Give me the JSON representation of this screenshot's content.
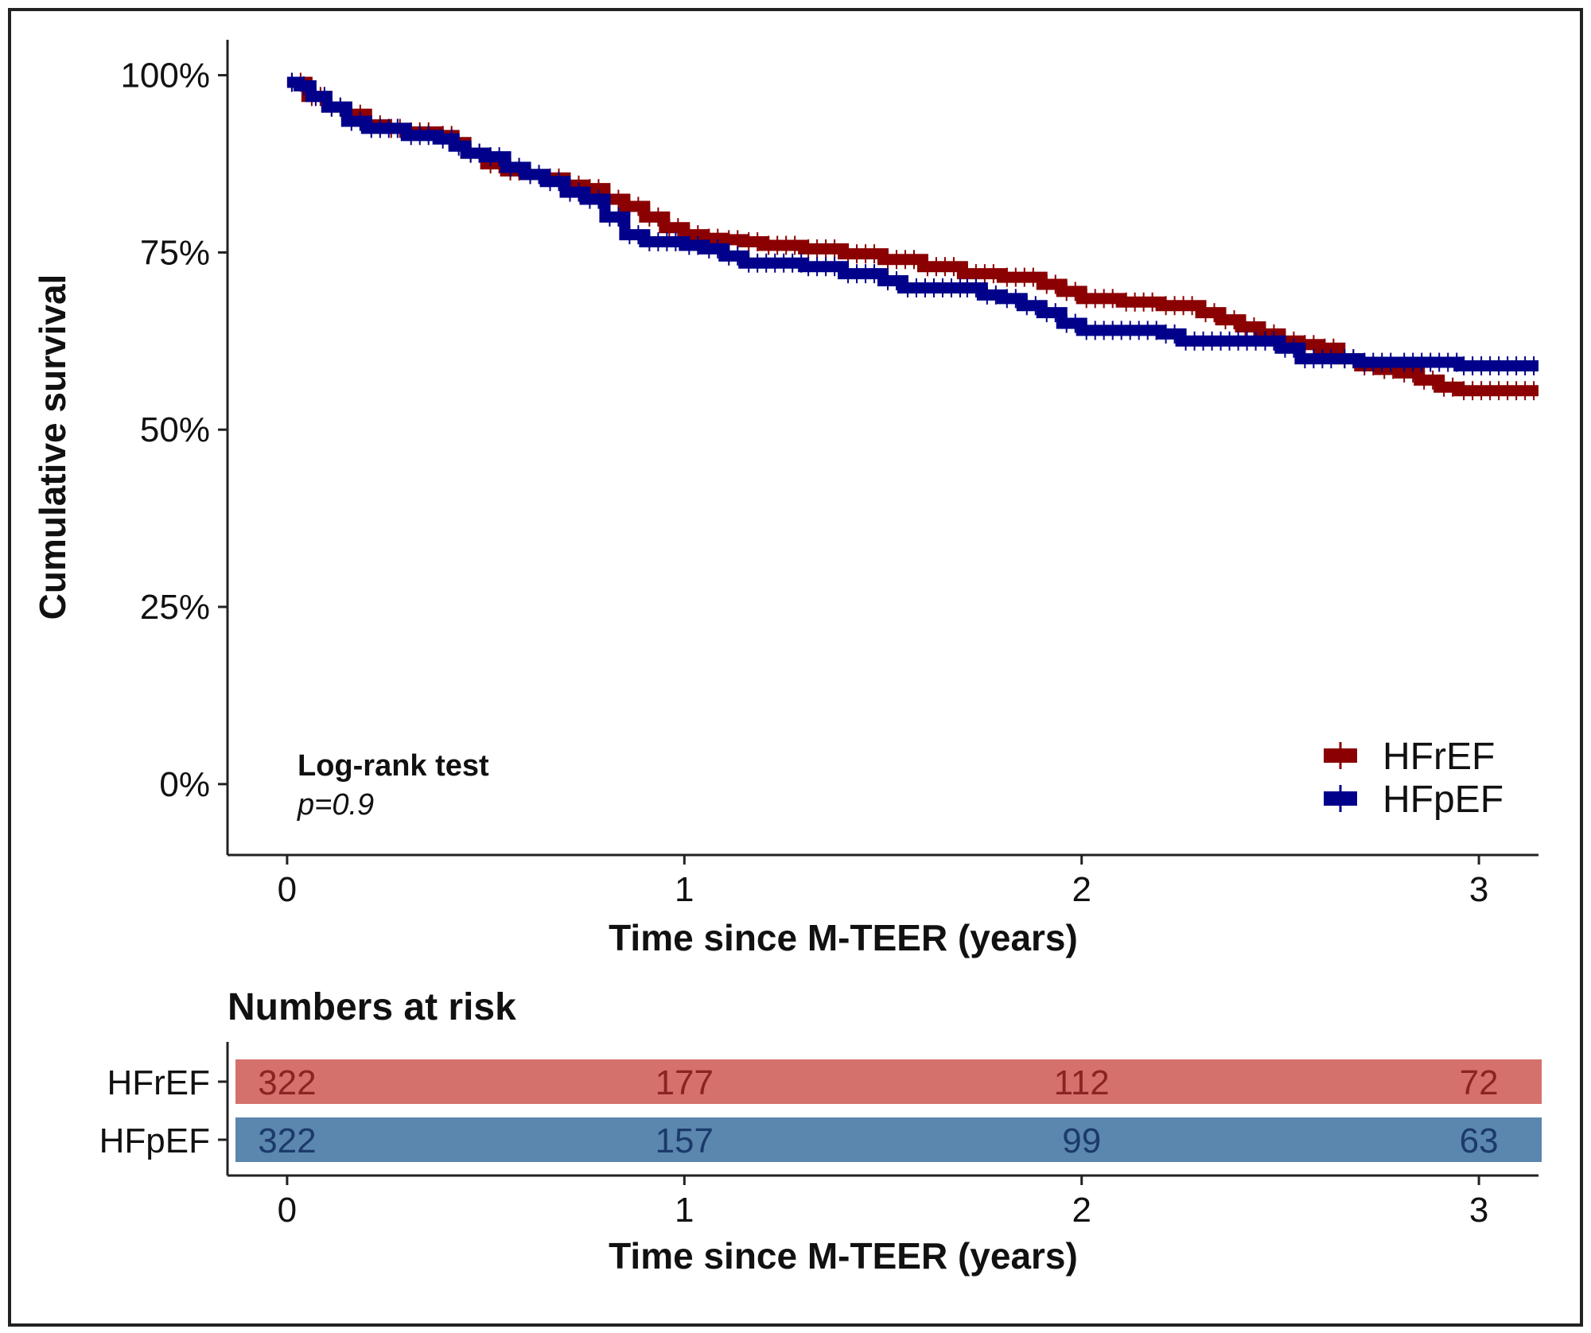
{
  "chart_data": {
    "type": "line",
    "subtype": "kaplan-meier",
    "title": "",
    "xlabel": "Time since M-TEER (years)",
    "ylabel": "Cumulative survival",
    "xlim": [
      -0.15,
      3.15
    ],
    "ylim": [
      -0.1,
      1.05
    ],
    "x_ticks": [
      0,
      1,
      2,
      3
    ],
    "y_ticks": [
      0,
      0.25,
      0.5,
      0.75,
      1.0
    ],
    "y_tick_labels": [
      "0%",
      "25%",
      "50%",
      "75%",
      "100%"
    ],
    "grid": false,
    "legend_position": "bottom-right",
    "annotation": {
      "test": "Log-rank test",
      "p": "p=0.9"
    },
    "series": [
      {
        "name": "HFrEF",
        "color": "#8b0000",
        "points": [
          [
            0,
            0.99
          ],
          [
            0.05,
            0.97
          ],
          [
            0.1,
            0.955
          ],
          [
            0.15,
            0.945
          ],
          [
            0.2,
            0.93
          ],
          [
            0.25,
            0.925
          ],
          [
            0.3,
            0.92
          ],
          [
            0.38,
            0.915
          ],
          [
            0.42,
            0.905
          ],
          [
            0.45,
            0.89
          ],
          [
            0.5,
            0.875
          ],
          [
            0.55,
            0.865
          ],
          [
            0.6,
            0.86
          ],
          [
            0.65,
            0.855
          ],
          [
            0.7,
            0.845
          ],
          [
            0.75,
            0.84
          ],
          [
            0.8,
            0.825
          ],
          [
            0.85,
            0.815
          ],
          [
            0.9,
            0.8
          ],
          [
            0.95,
            0.785
          ],
          [
            1.0,
            0.775
          ],
          [
            1.05,
            0.77
          ],
          [
            1.1,
            0.768
          ],
          [
            1.15,
            0.765
          ],
          [
            1.2,
            0.76
          ],
          [
            1.3,
            0.755
          ],
          [
            1.4,
            0.748
          ],
          [
            1.5,
            0.74
          ],
          [
            1.6,
            0.73
          ],
          [
            1.7,
            0.72
          ],
          [
            1.8,
            0.715
          ],
          [
            1.9,
            0.705
          ],
          [
            1.95,
            0.695
          ],
          [
            2.0,
            0.685
          ],
          [
            2.1,
            0.68
          ],
          [
            2.2,
            0.675
          ],
          [
            2.3,
            0.665
          ],
          [
            2.35,
            0.655
          ],
          [
            2.4,
            0.645
          ],
          [
            2.45,
            0.635
          ],
          [
            2.5,
            0.625
          ],
          [
            2.55,
            0.62
          ],
          [
            2.6,
            0.615
          ],
          [
            2.65,
            0.6
          ],
          [
            2.7,
            0.59
          ],
          [
            2.75,
            0.585
          ],
          [
            2.8,
            0.58
          ],
          [
            2.85,
            0.57
          ],
          [
            2.9,
            0.56
          ],
          [
            2.95,
            0.555
          ],
          [
            3.15,
            0.555
          ]
        ]
      },
      {
        "name": "HFpEF",
        "color": "#00008b",
        "points": [
          [
            0,
            0.99
          ],
          [
            0.03,
            0.985
          ],
          [
            0.06,
            0.97
          ],
          [
            0.1,
            0.955
          ],
          [
            0.15,
            0.935
          ],
          [
            0.2,
            0.925
          ],
          [
            0.3,
            0.915
          ],
          [
            0.38,
            0.91
          ],
          [
            0.42,
            0.9
          ],
          [
            0.45,
            0.89
          ],
          [
            0.5,
            0.885
          ],
          [
            0.55,
            0.87
          ],
          [
            0.6,
            0.86
          ],
          [
            0.65,
            0.85
          ],
          [
            0.7,
            0.835
          ],
          [
            0.75,
            0.825
          ],
          [
            0.8,
            0.8
          ],
          [
            0.85,
            0.775
          ],
          [
            0.9,
            0.765
          ],
          [
            1.0,
            0.76
          ],
          [
            1.05,
            0.755
          ],
          [
            1.1,
            0.745
          ],
          [
            1.15,
            0.735
          ],
          [
            1.3,
            0.73
          ],
          [
            1.4,
            0.72
          ],
          [
            1.5,
            0.71
          ],
          [
            1.55,
            0.7
          ],
          [
            1.7,
            0.7
          ],
          [
            1.75,
            0.69
          ],
          [
            1.8,
            0.685
          ],
          [
            1.85,
            0.675
          ],
          [
            1.9,
            0.665
          ],
          [
            1.95,
            0.65
          ],
          [
            2.0,
            0.64
          ],
          [
            2.2,
            0.635
          ],
          [
            2.25,
            0.625
          ],
          [
            2.45,
            0.625
          ],
          [
            2.5,
            0.615
          ],
          [
            2.55,
            0.6
          ],
          [
            2.65,
            0.6
          ],
          [
            2.7,
            0.595
          ],
          [
            2.8,
            0.595
          ],
          [
            2.95,
            0.59
          ],
          [
            3.15,
            0.59
          ]
        ]
      }
    ],
    "risk_table": {
      "title": "Numbers at risk",
      "xlabel": "Time since M-TEER (years)",
      "times": [
        0,
        1,
        2,
        3
      ],
      "rows": [
        {
          "name": "HFrEF",
          "values": [
            "322",
            "177",
            "112",
            "72"
          ],
          "fill": "#d4716c",
          "text_color": "#8b2323"
        },
        {
          "name": "HFpEF",
          "values": [
            "322",
            "157",
            "99",
            "63"
          ],
          "fill": "#5b86ad",
          "text_color": "#1b3a6b"
        }
      ]
    }
  }
}
